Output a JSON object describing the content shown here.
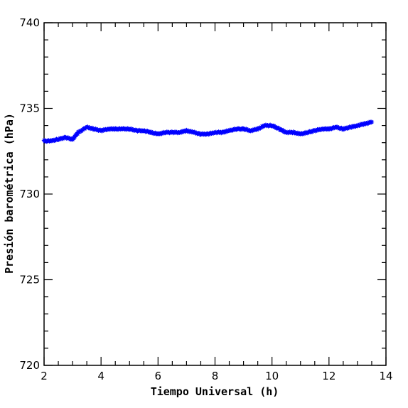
{
  "chart_data": {
    "type": "scatter",
    "marker": "asterisk",
    "color": "#0000ff",
    "xlabel": "Tiempo Universal (h)",
    "ylabel": "Presión barométrica (hPa)",
    "xlim": [
      2,
      14
    ],
    "ylim": [
      720,
      740
    ],
    "xticks": [
      2,
      4,
      6,
      8,
      10,
      12,
      14
    ],
    "yticks": [
      720,
      725,
      730,
      735,
      740
    ],
    "grid": false,
    "series": [
      {
        "x": [
          2.0,
          2.25,
          2.5,
          2.75,
          3.0,
          3.2,
          3.5,
          3.75,
          4.0,
          4.25,
          4.5,
          4.75,
          5.0,
          5.25,
          5.5,
          5.75,
          6.0,
          6.25,
          6.5,
          6.75,
          7.0,
          7.25,
          7.5,
          7.75,
          8.0,
          8.25,
          8.5,
          8.75,
          9.0,
          9.25,
          9.5,
          9.75,
          10.0,
          10.25,
          10.5,
          10.75,
          11.0,
          11.25,
          11.5,
          11.75,
          12.0,
          12.25,
          12.5,
          12.75,
          13.0,
          13.25,
          13.5
        ],
        "y": [
          733.1,
          733.1,
          733.2,
          733.3,
          733.2,
          733.6,
          733.9,
          733.8,
          733.7,
          733.8,
          733.8,
          733.8,
          733.8,
          733.7,
          733.7,
          733.6,
          733.5,
          733.6,
          733.6,
          733.6,
          733.7,
          733.6,
          733.5,
          733.5,
          733.6,
          733.6,
          733.7,
          733.8,
          733.8,
          733.7,
          733.8,
          734.0,
          734.0,
          733.8,
          733.6,
          733.6,
          733.5,
          733.6,
          733.7,
          733.8,
          733.8,
          733.9,
          733.8,
          733.9,
          734.0,
          734.1,
          734.2
        ]
      }
    ]
  }
}
